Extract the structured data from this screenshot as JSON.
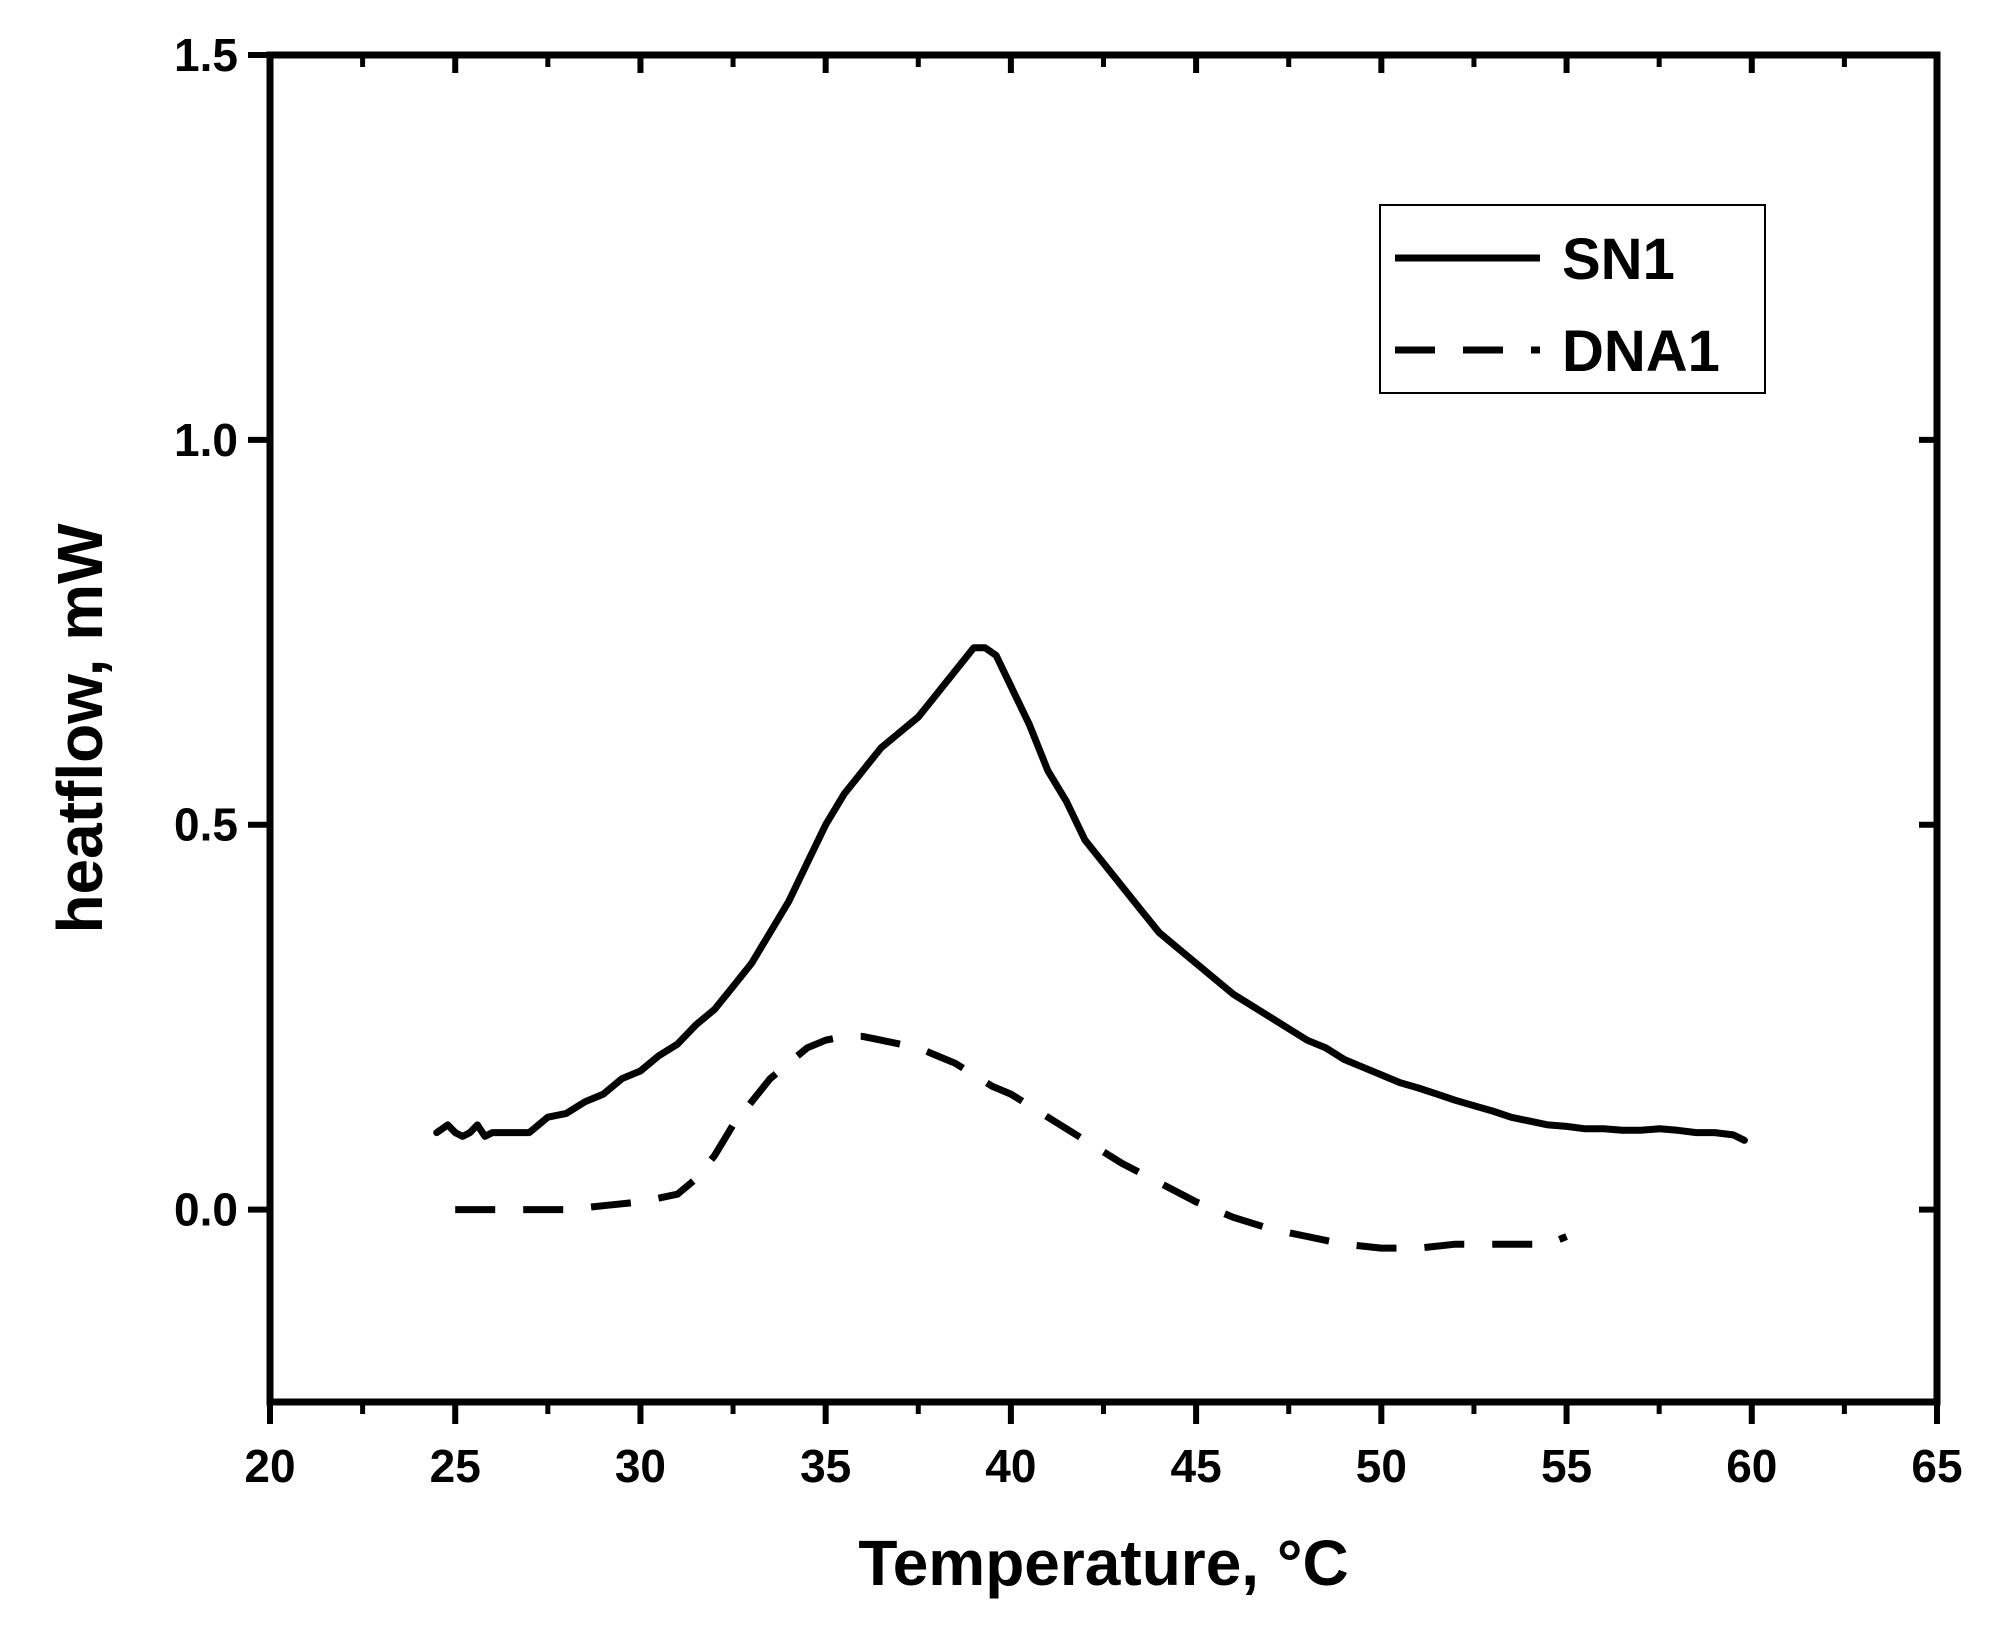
{
  "chart_data": {
    "type": "line",
    "title": "",
    "xlabel": "Temperature, °C",
    "ylabel": "heatflow, mW",
    "xlim": [
      20,
      65
    ],
    "ylim": [
      -0.25,
      1.5
    ],
    "xticks": [
      "20",
      "25",
      "30",
      "35",
      "40",
      "45",
      "50",
      "55",
      "60",
      "65"
    ],
    "yticks": [
      "0.0",
      "0.5",
      "1.0",
      "1.5"
    ],
    "xtick_values": [
      20,
      25,
      30,
      35,
      40,
      45,
      50,
      55,
      60,
      65
    ],
    "ytick_values": [
      0.0,
      0.5,
      1.0,
      1.5
    ],
    "grid": false,
    "legend_position": "top-right",
    "series": [
      {
        "name": "SN1",
        "line_style": "solid",
        "color": "#000000",
        "x": [
          24.5,
          24.8,
          25.0,
          25.2,
          25.4,
          25.6,
          25.8,
          26.0,
          26.5,
          27.0,
          27.5,
          28.0,
          28.5,
          29.0,
          29.5,
          30.0,
          30.5,
          31.0,
          31.5,
          32.0,
          32.5,
          33.0,
          33.5,
          34.0,
          34.5,
          35.0,
          35.5,
          36.0,
          36.5,
          37.0,
          37.5,
          38.0,
          38.5,
          39.0,
          39.3,
          39.6,
          40.0,
          40.5,
          41.0,
          41.5,
          42.0,
          42.5,
          43.0,
          43.5,
          44.0,
          44.5,
          45.0,
          45.5,
          46.0,
          46.5,
          47.0,
          47.5,
          48.0,
          48.5,
          49.0,
          49.5,
          50.0,
          50.5,
          51.0,
          51.5,
          52.0,
          52.5,
          53.0,
          53.5,
          54.0,
          54.5,
          55.0,
          55.5,
          56.0,
          56.5,
          57.0,
          57.5,
          58.0,
          58.5,
          59.0,
          59.5,
          59.8
        ],
        "y": [
          0.1,
          0.11,
          0.1,
          0.095,
          0.1,
          0.11,
          0.095,
          0.1,
          0.1,
          0.1,
          0.12,
          0.125,
          0.14,
          0.15,
          0.17,
          0.18,
          0.2,
          0.215,
          0.24,
          0.26,
          0.29,
          0.32,
          0.36,
          0.4,
          0.45,
          0.5,
          0.54,
          0.57,
          0.6,
          0.62,
          0.64,
          0.67,
          0.7,
          0.73,
          0.73,
          0.72,
          0.68,
          0.63,
          0.57,
          0.53,
          0.48,
          0.45,
          0.42,
          0.39,
          0.36,
          0.34,
          0.32,
          0.3,
          0.28,
          0.265,
          0.25,
          0.235,
          0.22,
          0.21,
          0.195,
          0.185,
          0.175,
          0.165,
          0.158,
          0.15,
          0.142,
          0.135,
          0.128,
          0.12,
          0.115,
          0.11,
          0.108,
          0.105,
          0.105,
          0.103,
          0.103,
          0.105,
          0.103,
          0.1,
          0.1,
          0.097,
          0.09
        ]
      },
      {
        "name": "DNA1",
        "line_style": "dashed",
        "color": "#000000",
        "x": [
          25.0,
          26.0,
          27.0,
          28.0,
          29.0,
          30.0,
          31.0,
          31.5,
          32.0,
          32.5,
          33.0,
          33.5,
          34.0,
          34.5,
          35.0,
          35.5,
          36.0,
          36.5,
          37.0,
          37.5,
          38.0,
          38.5,
          39.0,
          39.5,
          40.0,
          41.0,
          42.0,
          43.0,
          44.0,
          45.0,
          46.0,
          47.0,
          48.0,
          49.0,
          50.0,
          51.0,
          52.0,
          53.0,
          54.0,
          54.5,
          55.0
        ],
        "y": [
          0.0,
          0.0,
          0.0,
          0.0,
          0.005,
          0.01,
          0.02,
          0.04,
          0.07,
          0.11,
          0.14,
          0.17,
          0.19,
          0.21,
          0.22,
          0.225,
          0.225,
          0.22,
          0.215,
          0.21,
          0.2,
          0.19,
          0.175,
          0.16,
          0.15,
          0.12,
          0.09,
          0.06,
          0.035,
          0.01,
          -0.01,
          -0.025,
          -0.035,
          -0.045,
          -0.05,
          -0.05,
          -0.045,
          -0.045,
          -0.045,
          -0.045,
          -0.035
        ]
      }
    ]
  }
}
